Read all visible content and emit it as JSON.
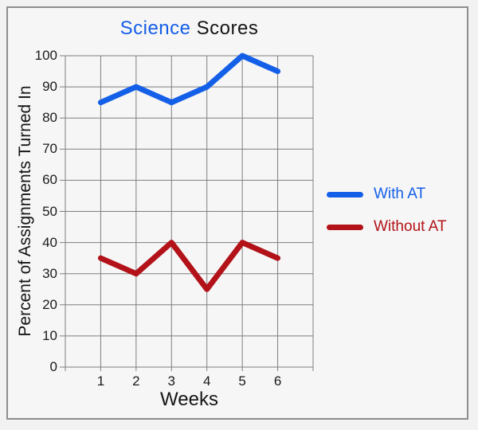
{
  "window": {
    "outer_background": "#f2f2f2",
    "panel_background": "#f6f6f6",
    "panel_border_color": "#8d8d8d"
  },
  "title": {
    "highlight": "Science",
    "rest": " Scores",
    "highlight_color": "#145fe8",
    "rest_color": "#141414"
  },
  "chart_data": {
    "type": "line",
    "x": [
      1,
      2,
      3,
      4,
      5,
      6
    ],
    "series": [
      {
        "name": "With AT",
        "values": [
          85,
          90,
          85,
          90,
          100,
          95
        ],
        "color": "#145fe8"
      },
      {
        "name": "Without AT",
        "values": [
          35,
          30,
          40,
          25,
          40,
          35
        ],
        "color": "#b21218"
      }
    ],
    "xlabel": "Weeks",
    "ylabel": "Percent of Assignments Turned In",
    "xlim": [
      0,
      7
    ],
    "ylim": [
      0,
      100
    ],
    "xticks": [
      1,
      2,
      3,
      4,
      5,
      6
    ],
    "yticks": [
      0,
      10,
      20,
      30,
      40,
      50,
      60,
      70,
      80,
      90,
      100
    ],
    "grid": true,
    "grid_color": "#7e7e7e",
    "line_width": 7,
    "legend_position": "right"
  }
}
